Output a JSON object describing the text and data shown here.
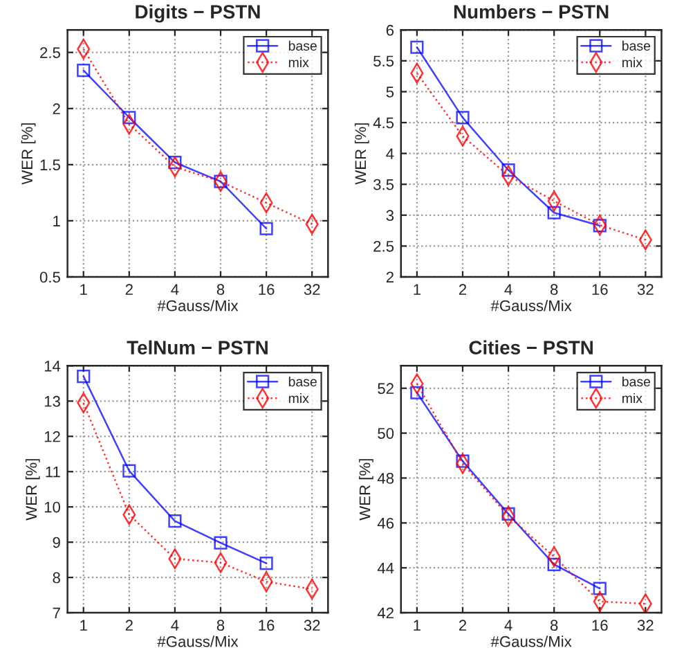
{
  "chart_data": [
    {
      "type": "line",
      "title": "Digits − PSTN",
      "xlabel": "#Gauss/Mix",
      "ylabel": "WER [%]",
      "categories": [
        "1",
        "2",
        "4",
        "8",
        "16",
        "32"
      ],
      "ylim": [
        0.5,
        2.7
      ],
      "yticks": [
        0.5,
        1,
        1.5,
        2,
        2.5
      ],
      "grid": true,
      "legend": "top right",
      "series": [
        {
          "name": "base",
          "color": "#0000ff",
          "marker": "square",
          "line_style": "solid",
          "values": [
            2.34,
            1.92,
            1.52,
            1.35,
            0.93,
            null
          ]
        },
        {
          "name": "mix",
          "color": "#ff0000",
          "marker": "diamond",
          "line_style": "dotted",
          "values": [
            2.53,
            1.86,
            1.48,
            1.35,
            1.16,
            0.97
          ]
        }
      ]
    },
    {
      "type": "line",
      "title": "Numbers − PSTN",
      "xlabel": "#Gauss/Mix",
      "ylabel": "WER [%]",
      "categories": [
        "1",
        "2",
        "4",
        "8",
        "16",
        "32"
      ],
      "ylim": [
        2,
        6
      ],
      "yticks": [
        2,
        2.5,
        3,
        3.5,
        4,
        4.5,
        5,
        5.5,
        6
      ],
      "grid": true,
      "legend": "top right",
      "series": [
        {
          "name": "base",
          "color": "#0000ff",
          "marker": "square",
          "line_style": "solid",
          "values": [
            5.72,
            4.58,
            3.73,
            3.04,
            2.83,
            null
          ]
        },
        {
          "name": "mix",
          "color": "#ff0000",
          "marker": "diamond",
          "line_style": "dotted",
          "values": [
            5.3,
            4.28,
            3.64,
            3.23,
            2.84,
            2.6
          ]
        }
      ]
    },
    {
      "type": "line",
      "title": "TelNum − PSTN",
      "xlabel": "#Gauss/Mix",
      "ylabel": "WER [%]",
      "categories": [
        "1",
        "2",
        "4",
        "8",
        "16",
        "32"
      ],
      "ylim": [
        7,
        14
      ],
      "yticks": [
        7,
        8,
        9,
        10,
        11,
        12,
        13,
        14
      ],
      "grid": true,
      "legend": "top right",
      "series": [
        {
          "name": "base",
          "color": "#0000ff",
          "marker": "square",
          "line_style": "solid",
          "values": [
            13.7,
            11.02,
            9.6,
            8.98,
            8.4,
            null
          ]
        },
        {
          "name": "mix",
          "color": "#ff0000",
          "marker": "diamond",
          "line_style": "dotted",
          "values": [
            12.95,
            9.78,
            8.53,
            8.42,
            7.88,
            7.67
          ]
        }
      ]
    },
    {
      "type": "line",
      "title": "Cities − PSTN",
      "xlabel": "#Gauss/Mix",
      "ylabel": "WER [%]",
      "categories": [
        "1",
        "2",
        "4",
        "8",
        "16",
        "32"
      ],
      "ylim": [
        42,
        53
      ],
      "yticks": [
        42,
        44,
        46,
        48,
        50,
        52
      ],
      "grid": true,
      "legend": "top right",
      "series": [
        {
          "name": "base",
          "color": "#0000ff",
          "marker": "square",
          "line_style": "solid",
          "values": [
            51.8,
            48.75,
            46.4,
            44.15,
            43.08,
            null
          ]
        },
        {
          "name": "mix",
          "color": "#ff0000",
          "marker": "diamond",
          "line_style": "dotted",
          "values": [
            52.2,
            48.65,
            46.3,
            44.5,
            42.5,
            42.4
          ]
        }
      ]
    }
  ]
}
